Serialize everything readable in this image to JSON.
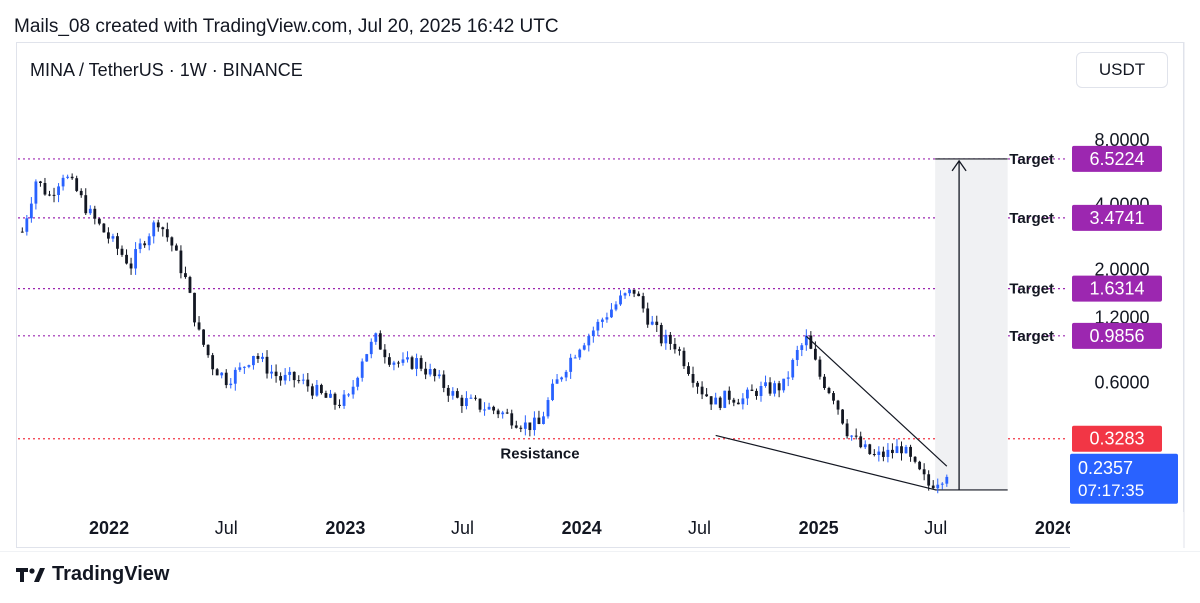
{
  "header": {
    "caption": "Mails_08 created with TradingView.com, Jul 20, 2025 16:42 UTC"
  },
  "chart_header": {
    "symbol": "MINA / TetherUS · 1W · BINANCE",
    "currency_button": "USDT"
  },
  "footer": {
    "brand": "TradingView"
  },
  "chart_data": {
    "type": "candlestick",
    "interval": "1W",
    "y_scale": "log",
    "ylim": [
      0.18,
      11
    ],
    "y_ticks": [
      {
        "value": 8.0,
        "label": "8.0000"
      },
      {
        "value": 4.0,
        "label": "4.0000"
      },
      {
        "value": 2.0,
        "label": "2.0000"
      },
      {
        "value": 1.2,
        "label": "1.2000"
      },
      {
        "value": 0.6,
        "label": "0.6000"
      }
    ],
    "x_ticks": [
      {
        "label": "2022",
        "bold": true,
        "date": "2022-01-01"
      },
      {
        "label": "Jul",
        "bold": false,
        "date": "2022-07-01"
      },
      {
        "label": "2023",
        "bold": true,
        "date": "2023-01-01"
      },
      {
        "label": "Jul",
        "bold": false,
        "date": "2023-07-01"
      },
      {
        "label": "2024",
        "bold": true,
        "date": "2024-01-01"
      },
      {
        "label": "Jul",
        "bold": false,
        "date": "2024-07-01"
      },
      {
        "label": "2025",
        "bold": true,
        "date": "2025-01-01"
      },
      {
        "label": "Jul",
        "bold": false,
        "date": "2025-07-01"
      },
      {
        "label": "2026",
        "bold": true,
        "date": "2026-01-01"
      }
    ],
    "price_path": [
      [
        "2021-08-20",
        3.0
      ],
      [
        "2021-09-10",
        5.2
      ],
      [
        "2021-10-01",
        4.4
      ],
      [
        "2021-10-22",
        5.6
      ],
      [
        "2021-11-12",
        4.6
      ],
      [
        "2021-12-03",
        3.6
      ],
      [
        "2021-12-24",
        3.0
      ],
      [
        "2022-01-14",
        2.5
      ],
      [
        "2022-02-04",
        2.1
      ],
      [
        "2022-02-25",
        2.8
      ],
      [
        "2022-03-18",
        3.4
      ],
      [
        "2022-04-08",
        2.6
      ],
      [
        "2022-04-29",
        1.8
      ],
      [
        "2022-05-20",
        1.0
      ],
      [
        "2022-06-10",
        0.72
      ],
      [
        "2022-07-01",
        0.62
      ],
      [
        "2022-07-22",
        0.68
      ],
      [
        "2022-08-12",
        0.82
      ],
      [
        "2022-09-02",
        0.7
      ],
      [
        "2022-09-23",
        0.62
      ],
      [
        "2022-10-14",
        0.62
      ],
      [
        "2022-11-04",
        0.58
      ],
      [
        "2022-11-25",
        0.52
      ],
      [
        "2022-12-16",
        0.48
      ],
      [
        "2023-01-06",
        0.5
      ],
      [
        "2023-01-27",
        0.78
      ],
      [
        "2023-02-17",
        0.95
      ],
      [
        "2023-03-10",
        0.78
      ],
      [
        "2023-03-31",
        0.72
      ],
      [
        "2023-04-21",
        0.75
      ],
      [
        "2023-05-12",
        0.66
      ],
      [
        "2023-06-02",
        0.58
      ],
      [
        "2023-06-23",
        0.5
      ],
      [
        "2023-07-14",
        0.48
      ],
      [
        "2023-08-04",
        0.46
      ],
      [
        "2023-08-25",
        0.44
      ],
      [
        "2023-09-15",
        0.41
      ],
      [
        "2023-10-06",
        0.38
      ],
      [
        "2023-10-27",
        0.38
      ],
      [
        "2023-11-17",
        0.55
      ],
      [
        "2023-12-08",
        0.72
      ],
      [
        "2023-12-29",
        0.9
      ],
      [
        "2024-01-19",
        1.05
      ],
      [
        "2024-02-09",
        1.25
      ],
      [
        "2024-03-01",
        1.45
      ],
      [
        "2024-03-22",
        1.6
      ],
      [
        "2024-04-12",
        1.2
      ],
      [
        "2024-05-03",
        0.95
      ],
      [
        "2024-05-24",
        0.9
      ],
      [
        "2024-06-14",
        0.7
      ],
      [
        "2024-07-05",
        0.55
      ],
      [
        "2024-07-26",
        0.48
      ],
      [
        "2024-08-16",
        0.52
      ],
      [
        "2024-09-06",
        0.5
      ],
      [
        "2024-09-27",
        0.55
      ],
      [
        "2024-10-18",
        0.56
      ],
      [
        "2024-11-08",
        0.58
      ],
      [
        "2024-11-29",
        0.82
      ],
      [
        "2024-12-13",
        0.95
      ],
      [
        "2025-01-03",
        0.64
      ],
      [
        "2025-01-24",
        0.52
      ],
      [
        "2025-02-14",
        0.36
      ],
      [
        "2025-03-07",
        0.3
      ],
      [
        "2025-03-28",
        0.27
      ],
      [
        "2025-04-18",
        0.28
      ],
      [
        "2025-05-09",
        0.3
      ],
      [
        "2025-05-30",
        0.24
      ],
      [
        "2025-06-20",
        0.2
      ],
      [
        "2025-07-11",
        0.22
      ],
      [
        "2025-07-20",
        0.2357
      ]
    ],
    "price_lines": [
      {
        "value": 6.5224,
        "label": "6.5224",
        "color": "#9c27b0",
        "annotation": "Target"
      },
      {
        "value": 3.4741,
        "label": "3.4741",
        "color": "#9c27b0",
        "annotation": "Target"
      },
      {
        "value": 1.6314,
        "label": "1.6314",
        "color": "#9c27b0",
        "annotation": "Target"
      },
      {
        "value": 0.9856,
        "label": "0.9856",
        "color": "#9c27b0",
        "annotation": "Target"
      },
      {
        "value": 0.3283,
        "label": "0.3283",
        "color": "#f23645",
        "annotation": "Resistance"
      }
    ],
    "current_price": {
      "value": 0.2357,
      "label": "0.2357",
      "countdown": "07:17:35",
      "color": "#2962ff"
    },
    "wedge": {
      "upper": [
        [
          "2024-12-13",
          0.98
        ],
        [
          "2025-07-18",
          0.245
        ]
      ],
      "lower": [
        [
          "2024-07-26",
          0.34
        ],
        [
          "2025-07-01",
          0.19
        ]
      ]
    },
    "target_projection": {
      "from": 0.19,
      "to": 6.5224,
      "date_start": "2025-06-30",
      "date_end": "2025-10-20"
    },
    "colors": {
      "up": "#2962ff",
      "down": "#131722",
      "target": "#9c27b0",
      "resistance": "#f23645"
    }
  }
}
